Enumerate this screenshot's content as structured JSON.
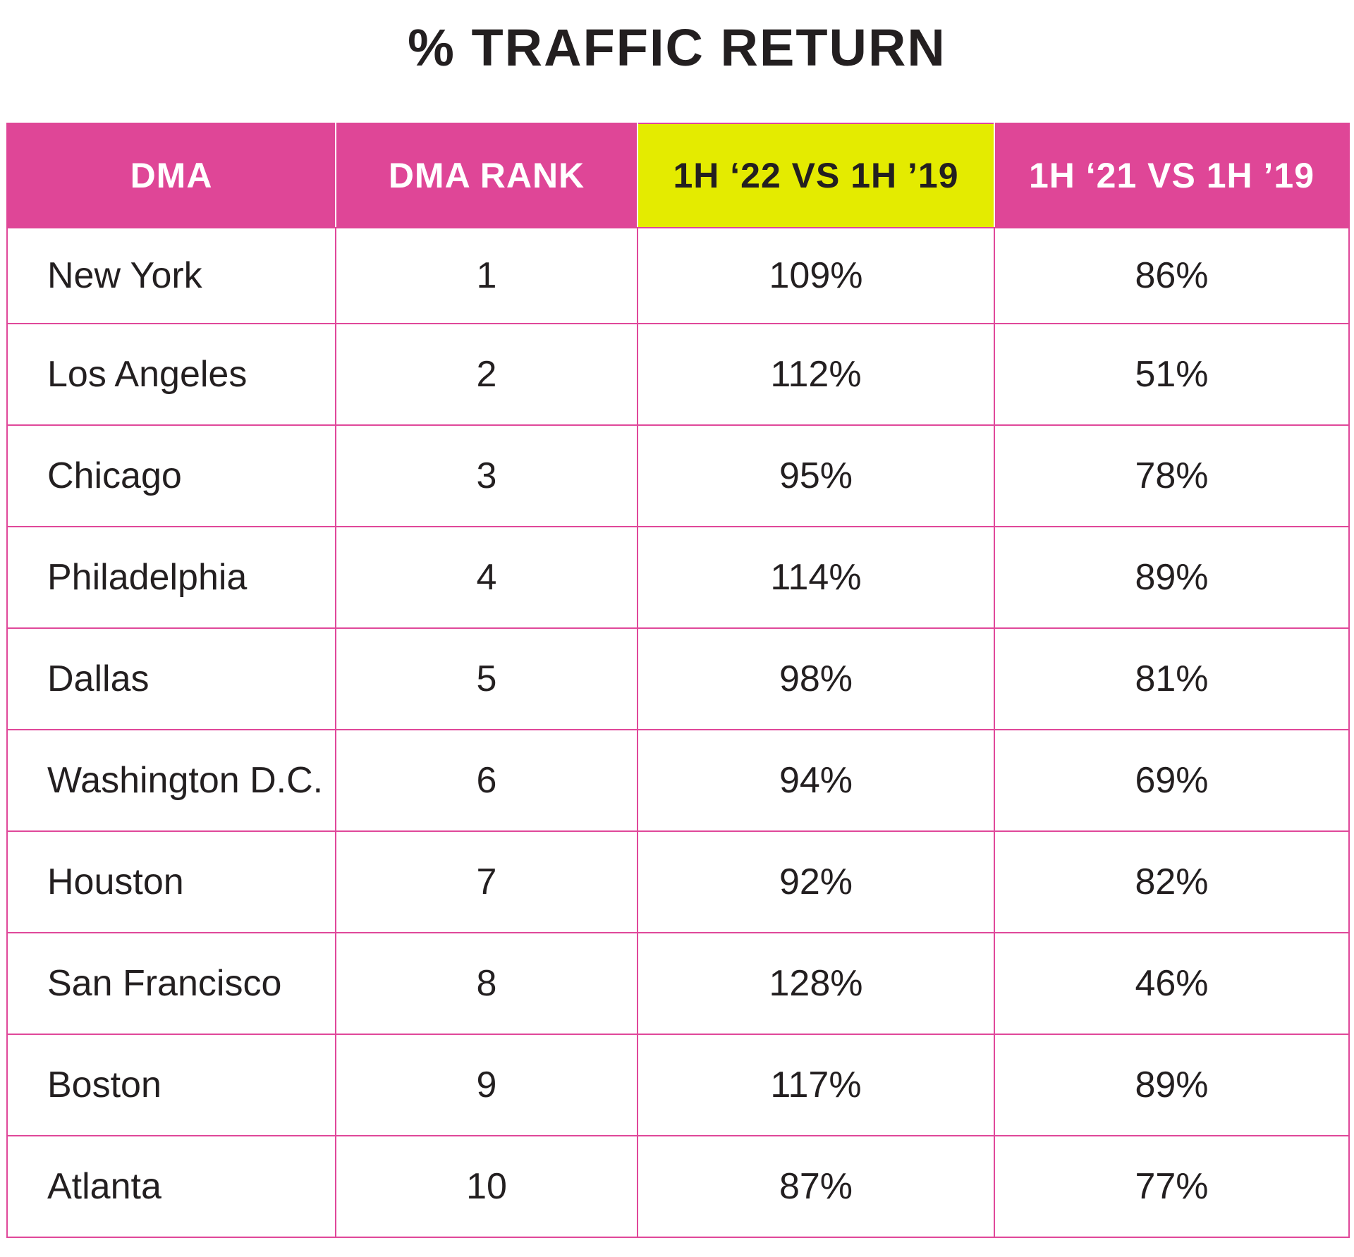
{
  "title": "% TRAFFIC RETURN",
  "colors": {
    "header_pink": "#df4697",
    "header_highlight": "#e4eb00",
    "border_pink": "#e0489a",
    "text_dark": "#231f20"
  },
  "chart_data": {
    "type": "table",
    "title": "% TRAFFIC RETURN",
    "columns": [
      "DMA",
      "DMA RANK",
      "1H ‘22 VS 1H ’19",
      "1H ‘21 VS 1H ’19"
    ],
    "highlighted_column": 2,
    "rows": [
      {
        "dma": "New York",
        "rank": "1",
        "h22_vs_h19": "109%",
        "h21_vs_h19": "86%"
      },
      {
        "dma": "Los Angeles",
        "rank": "2",
        "h22_vs_h19": "112%",
        "h21_vs_h19": "51%"
      },
      {
        "dma": "Chicago",
        "rank": "3",
        "h22_vs_h19": "95%",
        "h21_vs_h19": "78%"
      },
      {
        "dma": "Philadelphia",
        "rank": "4",
        "h22_vs_h19": "114%",
        "h21_vs_h19": "89%"
      },
      {
        "dma": "Dallas",
        "rank": "5",
        "h22_vs_h19": "98%",
        "h21_vs_h19": "81%"
      },
      {
        "dma": "Washington D.C.",
        "rank": "6",
        "h22_vs_h19": "94%",
        "h21_vs_h19": "69%"
      },
      {
        "dma": "Houston",
        "rank": "7",
        "h22_vs_h19": "92%",
        "h21_vs_h19": "82%"
      },
      {
        "dma": "San Francisco",
        "rank": "8",
        "h22_vs_h19": "128%",
        "h21_vs_h19": "46%"
      },
      {
        "dma": "Boston",
        "rank": "9",
        "h22_vs_h19": "117%",
        "h21_vs_h19": "89%"
      },
      {
        "dma": "Atlanta",
        "rank": "10",
        "h22_vs_h19": "87%",
        "h21_vs_h19": "77%"
      }
    ]
  }
}
